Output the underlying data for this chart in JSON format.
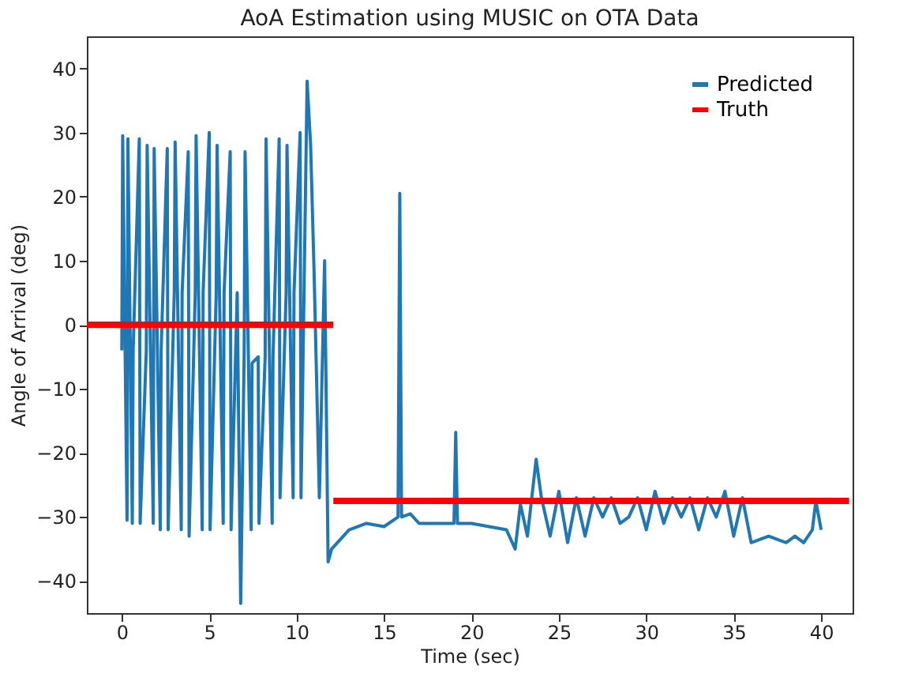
{
  "chart_data": {
    "type": "line",
    "title": "AoA Estimation using MUSIC on OTA Data",
    "xlabel": "Time (sec)",
    "ylabel": "Angle of Arrival (deg)",
    "xlim": [
      -2,
      41.8
    ],
    "ylim": [
      -45,
      45
    ],
    "xticks": [
      0,
      5,
      10,
      15,
      20,
      25,
      30,
      35,
      40
    ],
    "yticks": [
      -40,
      -30,
      -20,
      -10,
      0,
      10,
      20,
      30,
      40
    ],
    "grid": false,
    "legend": "top right",
    "series": [
      {
        "name": "Predicted",
        "color": "#1f77b4",
        "x": [
          0,
          0.05,
          0.3,
          0.35,
          0.6,
          0.65,
          1.0,
          1.05,
          1.4,
          1.45,
          1.8,
          1.85,
          2.2,
          2.25,
          2.6,
          2.65,
          3.0,
          3.05,
          3.4,
          3.45,
          3.8,
          3.85,
          4.2,
          4.25,
          4.6,
          4.65,
          5.0,
          5.05,
          5.4,
          5.45,
          5.8,
          5.85,
          6.2,
          6.25,
          6.6,
          6.8,
          7.0,
          7.05,
          7.4,
          7.45,
          7.8,
          7.85,
          8.2,
          8.25,
          8.6,
          8.65,
          9.0,
          9.05,
          9.4,
          9.45,
          9.8,
          9.85,
          10.2,
          10.25,
          10.6,
          10.8,
          11.0,
          11.3,
          11.6,
          11.8,
          12.0,
          13,
          14,
          15,
          15.8,
          15.9,
          16.0,
          16.5,
          17,
          18,
          19.0,
          19.1,
          19.2,
          20,
          21,
          22,
          22.5,
          22.8,
          23.2,
          23.7,
          24,
          24.5,
          25,
          25.5,
          26,
          26.5,
          27,
          27.5,
          28,
          28.5,
          29,
          29.5,
          30,
          30.5,
          31,
          31.5,
          32,
          32.5,
          33,
          33.5,
          34,
          34.5,
          35,
          35.5,
          36,
          37,
          38,
          38.5,
          39,
          39.5,
          39.7,
          40
        ],
        "values": [
          -4,
          29.5,
          -30.5,
          29,
          -31,
          -4,
          29,
          -31,
          -4,
          28,
          -31,
          27.5,
          -32,
          -4,
          27.5,
          -32,
          5,
          28.5,
          -32,
          5,
          27,
          -33,
          5,
          29.5,
          -32,
          5,
          30,
          -32,
          5,
          28,
          -31,
          5,
          27,
          -32,
          5,
          -43.5,
          -4,
          27,
          -32,
          -6,
          -5,
          -31,
          -5,
          29,
          -31,
          -5,
          29,
          -27,
          5,
          28,
          -27,
          5,
          30,
          -27,
          38,
          28,
          8,
          -27,
          10,
          -37,
          -35,
          -32,
          -31,
          -31.5,
          -30,
          20.5,
          -30,
          -29.5,
          -31,
          -31,
          -31,
          -16.8,
          -31,
          -31,
          -31.5,
          -32,
          -35,
          -28,
          -33,
          -21,
          -27,
          -33,
          -26,
          -34,
          -27,
          -33,
          -27,
          -30,
          -27,
          -31,
          -30,
          -27,
          -32,
          -26,
          -31,
          -27,
          -30,
          -27,
          -32,
          -27,
          -30,
          -26,
          -33,
          -27,
          -34,
          -33,
          -34,
          -33,
          -34,
          -32,
          -27.5,
          -32
        ]
      },
      {
        "name": "Truth",
        "color": "#ff0000",
        "x": [
          -2,
          12.1
        ],
        "values": [
          0,
          0
        ]
      },
      {
        "color": "#ff0000",
        "x": [
          12.1,
          41.6
        ],
        "values": [
          -27.5,
          -27.5
        ]
      }
    ]
  }
}
